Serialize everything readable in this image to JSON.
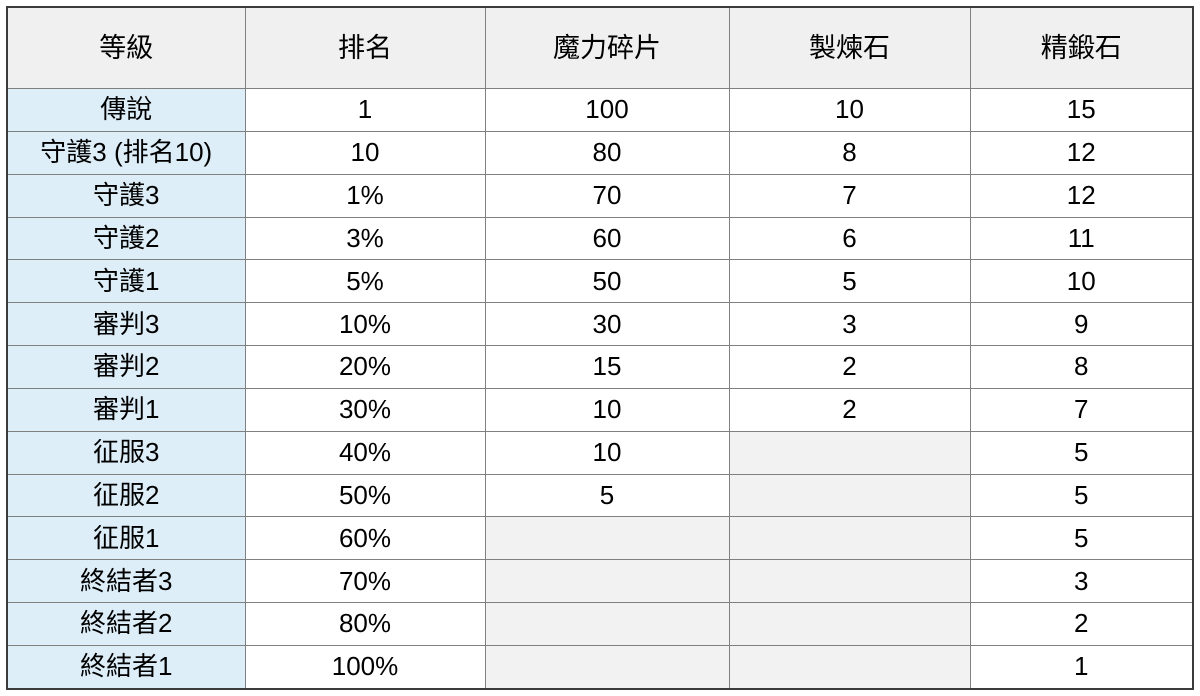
{
  "chart_data": {
    "type": "table",
    "title": "",
    "columns": [
      "等級",
      "排名",
      "魔力碎片",
      "製煉石",
      "精鍛石"
    ],
    "rows": [
      [
        "傳說",
        "1",
        "100",
        "10",
        "15"
      ],
      [
        "守護3 (排名10)",
        "10",
        "80",
        "8",
        "12"
      ],
      [
        "守護3",
        "1%",
        "70",
        "7",
        "12"
      ],
      [
        "守護2",
        "3%",
        "60",
        "6",
        "11"
      ],
      [
        "守護1",
        "5%",
        "50",
        "5",
        "10"
      ],
      [
        "審判3",
        "10%",
        "30",
        "3",
        "9"
      ],
      [
        "審判2",
        "20%",
        "15",
        "2",
        "8"
      ],
      [
        "審判1",
        "30%",
        "10",
        "2",
        "7"
      ],
      [
        "征服3",
        "40%",
        "10",
        null,
        "5"
      ],
      [
        "征服2",
        "50%",
        "5",
        null,
        "5"
      ],
      [
        "征服1",
        "60%",
        null,
        null,
        "5"
      ],
      [
        "終結者3",
        "70%",
        null,
        null,
        "3"
      ],
      [
        "終結者2",
        "80%",
        null,
        null,
        "2"
      ],
      [
        "終結者1",
        "100%",
        null,
        null,
        "1"
      ]
    ]
  },
  "colors": {
    "header_bg": "#f0f0f0",
    "level_column_bg": "#ddeef8",
    "empty_cell_bg": "#f2f2f2",
    "grid_line": "#808080",
    "outer_border": "#3b3b3b",
    "text": "#000000",
    "page_bg": "#ffffff"
  }
}
